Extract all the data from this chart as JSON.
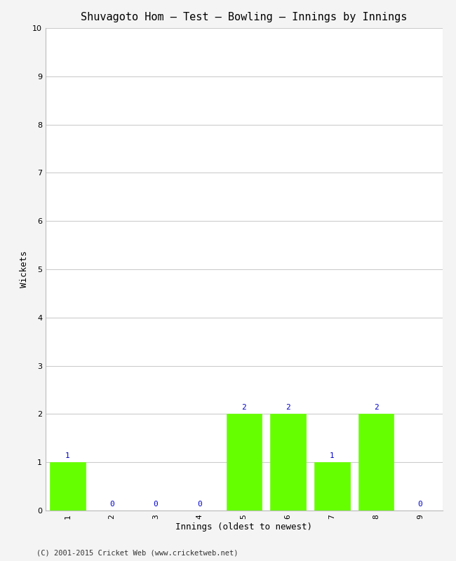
{
  "title": "Shuvagoto Hom – Test – Bowling – Innings by Innings",
  "xlabel": "Innings (oldest to newest)",
  "ylabel": "Wickets",
  "categories": [
    "1",
    "2",
    "3",
    "4",
    "5",
    "6",
    "7",
    "8",
    "9"
  ],
  "values": [
    1,
    0,
    0,
    0,
    2,
    2,
    1,
    2,
    0
  ],
  "bar_color": "#66ff00",
  "bar_edge_color": "#66ff00",
  "ylim": [
    0,
    10
  ],
  "yticks": [
    0,
    1,
    2,
    3,
    4,
    5,
    6,
    7,
    8,
    9,
    10
  ],
  "label_color": "#0000cc",
  "label_fontsize": 8,
  "title_fontsize": 11,
  "axis_label_fontsize": 9,
  "tick_fontsize": 8,
  "background_color": "#f4f4f4",
  "plot_bg_color": "#ffffff",
  "footer": "(C) 2001-2015 Cricket Web (www.cricketweb.net)",
  "footer_fontsize": 7.5,
  "grid_color": "#cccccc"
}
